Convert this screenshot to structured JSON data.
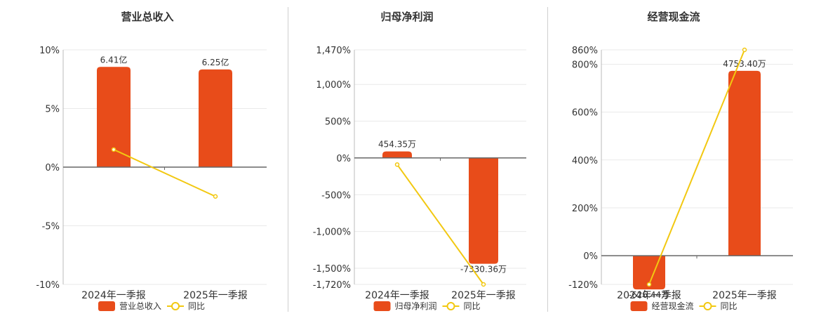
{
  "colors": {
    "bar": "#e84c1a",
    "line": "#f2c811",
    "grid": "#e9e9e9",
    "axis": "#666666",
    "divider": "#cfcfcf",
    "text": "#333333"
  },
  "chart_data": [
    {
      "type": "bar",
      "title": "营业总收入",
      "categories": [
        "2024年一季报",
        "2025年一季报"
      ],
      "series": [
        {
          "name": "营业总收入",
          "kind": "bar",
          "axis": "bar",
          "values": [
            6.41,
            6.25
          ],
          "labels": [
            "6.41亿",
            "6.25亿"
          ]
        },
        {
          "name": "同比",
          "kind": "line",
          "axis": "pct",
          "values": [
            1.5,
            -2.5
          ]
        }
      ],
      "pct_axis": {
        "ticks": [
          10,
          5,
          0,
          -5,
          -10
        ],
        "tick_labels": [
          "10%",
          "5%",
          "0%",
          "-5%",
          "-10%"
        ],
        "ylim": [
          -10,
          10
        ]
      },
      "bar_scale": [
        -7.5,
        7.5
      ],
      "grid": true,
      "legend": "bottom"
    },
    {
      "type": "bar",
      "title": "归母净利润",
      "categories": [
        "2024年一季报",
        "2025年一季报"
      ],
      "series": [
        {
          "name": "归母净利润",
          "kind": "bar",
          "axis": "bar",
          "values": [
            454.35,
            -7330.36
          ],
          "labels": [
            "454.35万",
            "-7330.36万"
          ]
        },
        {
          "name": "同比",
          "kind": "line",
          "axis": "pct",
          "values": [
            -90,
            -1720
          ]
        }
      ],
      "pct_axis": {
        "ticks": [
          1470,
          1000,
          500,
          0,
          -500,
          -1000,
          -1500,
          -1720
        ],
        "tick_labels": [
          "1,470%",
          "1,000%",
          "500%",
          "0%",
          "-500%",
          "-1,000%",
          "-1,500%",
          "-1,720%"
        ],
        "ylim": [
          -1720,
          1470
        ]
      },
      "bar_scale": [
        -8760,
        7490
      ],
      "grid": true,
      "legend": "bottom"
    },
    {
      "type": "bar",
      "title": "经营现金流",
      "categories": [
        "2024年一季报",
        "2025年一季报"
      ],
      "series": [
        {
          "name": "经营现金流",
          "kind": "bar",
          "axis": "bar",
          "values": [
            -626.44,
            4753.4
          ],
          "labels": [
            "-626.44万",
            "4753.40万"
          ]
        },
        {
          "name": "同比",
          "kind": "line",
          "axis": "pct",
          "values": [
            -120,
            860
          ]
        }
      ],
      "pct_axis": {
        "ticks": [
          860,
          800,
          600,
          400,
          200,
          0,
          -120
        ],
        "tick_labels": [
          "860%",
          "800%",
          "600%",
          "400%",
          "200%",
          "0%",
          "-120%"
        ],
        "ylim": [
          -120,
          860
        ]
      },
      "bar_scale": [
        -2850,
        5500
      ],
      "grid": true,
      "legend": "bottom"
    }
  ]
}
